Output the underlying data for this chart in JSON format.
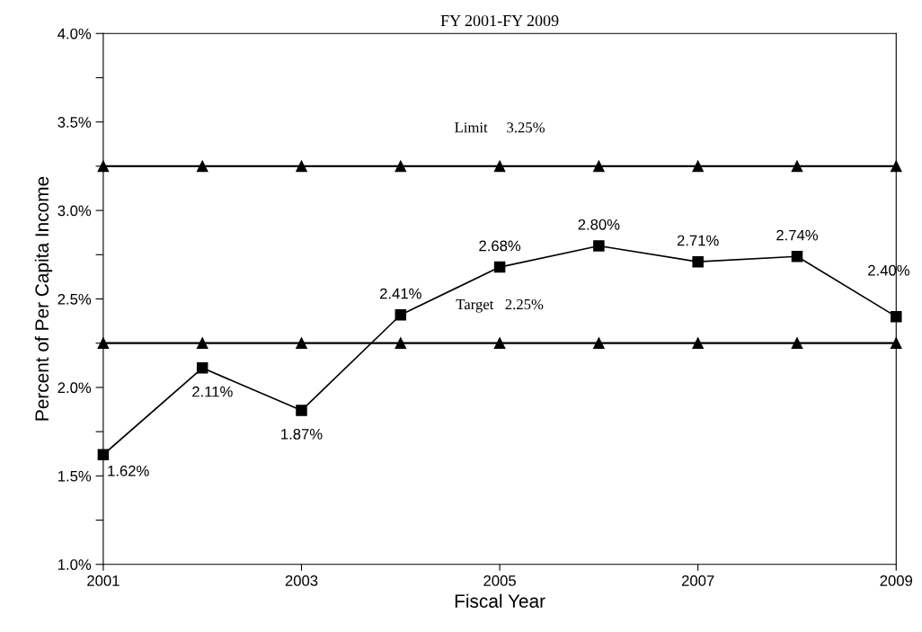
{
  "chart_data": {
    "type": "line",
    "title": "FY 2001-FY 2009",
    "xlabel": "Fiscal Year",
    "ylabel": "Percent of Per Capita Income",
    "x": [
      2001,
      2002,
      2003,
      2004,
      2005,
      2006,
      2007,
      2008,
      2009
    ],
    "series": [
      {
        "color": "#000000",
        "marker": "square",
        "values": [
          1.62,
          2.11,
          1.87,
          2.41,
          2.68,
          2.8,
          2.71,
          2.74,
          2.4
        ],
        "value_labels": [
          "1.62%",
          "2.11%",
          "1.87%",
          "2.41%",
          "2.68%",
          "2.80%",
          "2.71%",
          "2.74%",
          "2.40%"
        ]
      },
      {
        "color": "#000000",
        "marker": "triangle",
        "values": [
          3.25,
          3.25,
          3.25,
          3.25,
          3.25,
          3.25,
          3.25,
          3.25,
          3.25
        ]
      },
      {
        "color": "#000000",
        "marker": "triangle",
        "values": [
          2.25,
          2.25,
          2.25,
          2.25,
          2.25,
          2.25,
          2.25,
          2.25,
          2.25
        ]
      }
    ],
    "annotations": [
      {
        "text": "Limit     3.25%",
        "x": 2005,
        "y": 3.25
      },
      {
        "text": "Target   2.25%",
        "x": 2005,
        "y": 2.25
      }
    ],
    "xlim": [
      2001,
      2009
    ],
    "xticks": [
      2001,
      2003,
      2005,
      2007,
      2009
    ],
    "ylim": [
      1.0,
      4.0
    ],
    "yticks": [
      {
        "value": 1.0,
        "label": "1.0%"
      },
      {
        "value": 1.25,
        "label": null
      },
      {
        "value": 1.5,
        "label": "1.5%"
      },
      {
        "value": 1.75,
        "label": null
      },
      {
        "value": 2.0,
        "label": "2.0%"
      },
      {
        "value": 2.25,
        "label": null
      },
      {
        "value": 2.5,
        "label": "2.5%"
      },
      {
        "value": 2.75,
        "label": null
      },
      {
        "value": 3.0,
        "label": "3.0%"
      },
      {
        "value": 3.25,
        "label": null
      },
      {
        "value": 3.5,
        "label": "3.5%"
      },
      {
        "value": 3.75,
        "label": null
      },
      {
        "value": 4.0,
        "label": "4.0%"
      }
    ],
    "grid": false,
    "legend": false,
    "line_style": "solid"
  }
}
